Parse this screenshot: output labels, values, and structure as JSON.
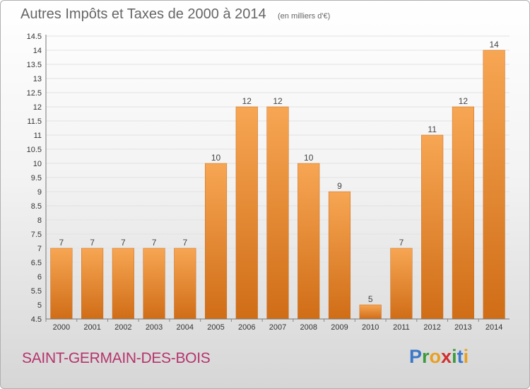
{
  "chart_data": {
    "type": "bar",
    "title": "Autres Impôts et Taxes de 2000 à 2014",
    "subtitle": "(en milliers d'€)",
    "categories": [
      "2000",
      "2001",
      "2002",
      "2003",
      "2004",
      "2005",
      "2006",
      "2007",
      "2008",
      "2009",
      "2010",
      "2011",
      "2012",
      "2013",
      "2014"
    ],
    "values": [
      7,
      7,
      7,
      7,
      7,
      10,
      12,
      12,
      10,
      9,
      5,
      7,
      11,
      12,
      14
    ],
    "data_labels": [
      "7",
      "7",
      "7",
      "7",
      "7",
      "10",
      "12",
      "12",
      "10",
      "9",
      "5",
      "7",
      "11",
      "12",
      "14"
    ],
    "ylim": [
      4.5,
      14.5
    ],
    "yticks": [
      "4.5",
      "5",
      "5.5",
      "6",
      "6.5",
      "7",
      "7.5",
      "8",
      "8.5",
      "9",
      "9.5",
      "10",
      "10.5",
      "11",
      "11.5",
      "12",
      "12.5",
      "13",
      "13.5",
      "14",
      "14.5"
    ],
    "grid": true,
    "bar_color": "#f0923a"
  },
  "footer": {
    "place": "SAINT-GERMAIN-DES-BOIS",
    "logo_letters": [
      "P",
      "r",
      "o",
      "x",
      "i",
      "t",
      "i"
    ],
    "logo_colors": [
      "#3c78c8",
      "#3c9a3c",
      "#e8a020",
      "#d03030",
      "#3c9a3c",
      "#3c78c8",
      "#e8a020"
    ]
  }
}
